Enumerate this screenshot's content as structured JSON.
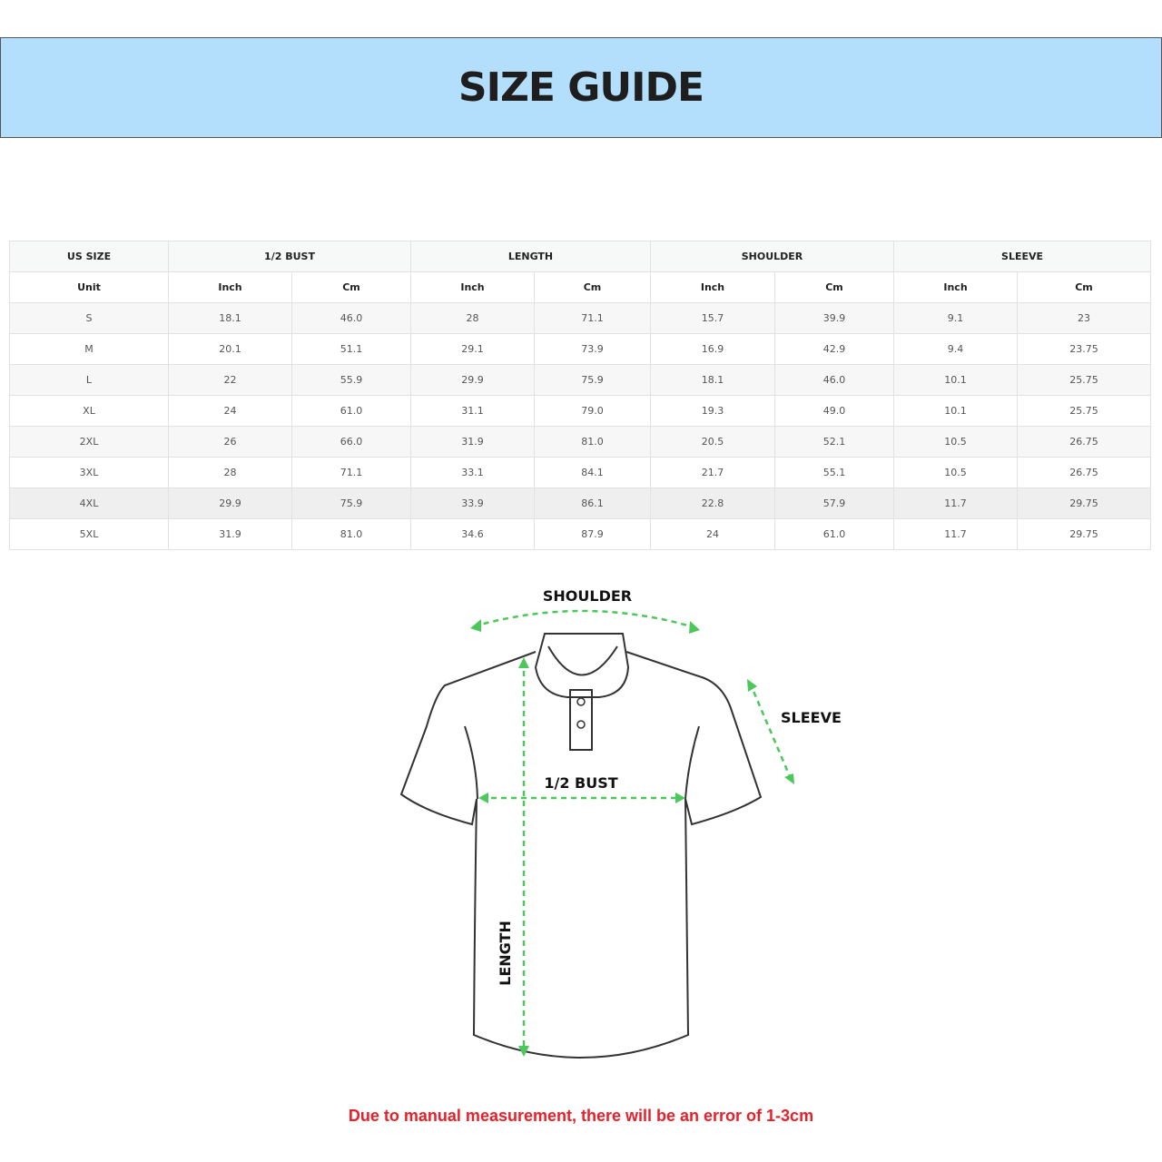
{
  "title": "SIZE GUIDE",
  "table": {
    "groups": [
      "US SIZE",
      "1/2 BUST",
      "LENGTH",
      "SHOULDER",
      "SLEEVE"
    ],
    "units": [
      "Unit",
      "Inch",
      "Cm",
      "Inch",
      "Cm",
      "Inch",
      "Cm",
      "Inch",
      "Cm"
    ],
    "rows": [
      [
        "S",
        "18.1",
        "46.0",
        "28",
        "71.1",
        "15.7",
        "39.9",
        "9.1",
        "23"
      ],
      [
        "M",
        "20.1",
        "51.1",
        "29.1",
        "73.9",
        "16.9",
        "42.9",
        "9.4",
        "23.75"
      ],
      [
        "L",
        "22",
        "55.9",
        "29.9",
        "75.9",
        "18.1",
        "46.0",
        "10.1",
        "25.75"
      ],
      [
        "XL",
        "24",
        "61.0",
        "31.1",
        "79.0",
        "19.3",
        "49.0",
        "10.1",
        "25.75"
      ],
      [
        "2XL",
        "26",
        "66.0",
        "31.9",
        "81.0",
        "20.5",
        "52.1",
        "10.5",
        "26.75"
      ],
      [
        "3XL",
        "28",
        "71.1",
        "33.1",
        "84.1",
        "21.7",
        "55.1",
        "10.5",
        "26.75"
      ],
      [
        "4XL",
        "29.9",
        "75.9",
        "33.9",
        "86.1",
        "22.8",
        "57.9",
        "11.7",
        "29.75"
      ],
      [
        "5XL",
        "31.9",
        "81.0",
        "34.6",
        "87.9",
        "24",
        "61.0",
        "11.7",
        "29.75"
      ]
    ]
  },
  "diagram": {
    "shoulder": "SHOULDER",
    "sleeve": "SLEEVE",
    "bust": "1/2 BUST",
    "length": "LENGTH",
    "arrow_color": "#4cc75a"
  },
  "note": "Due to manual measurement, there will be an error of 1-3cm"
}
